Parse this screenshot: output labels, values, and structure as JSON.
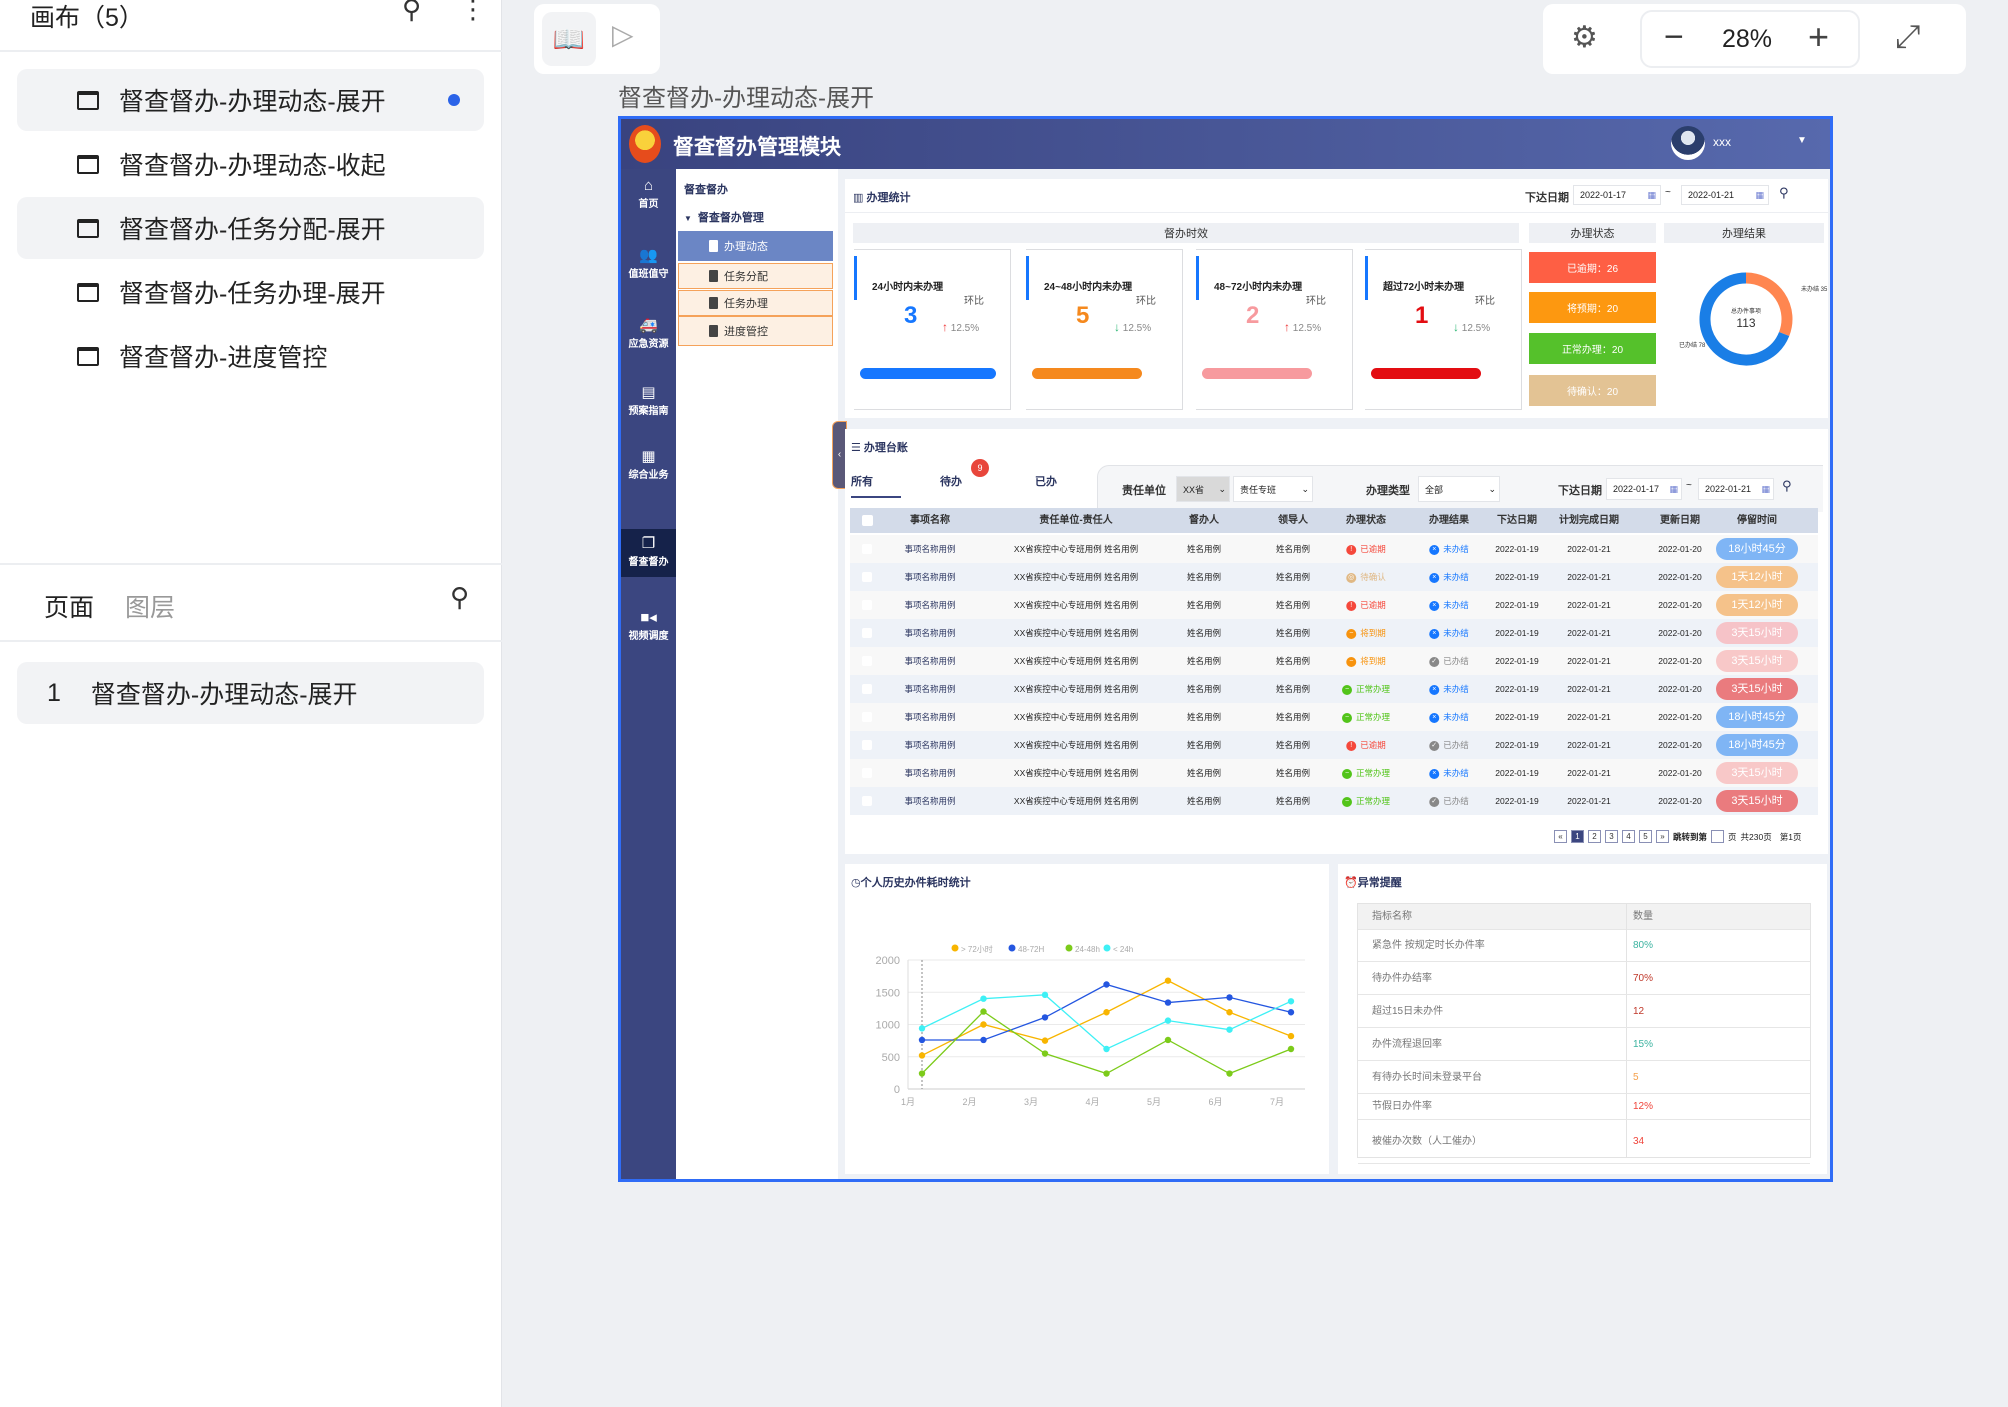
{
  "left_panel": {
    "canvas_title": "画布（5）",
    "canvas_items": [
      {
        "label": "督查督办-办理动态-展开",
        "active": true
      },
      {
        "label": "督查督办-办理动态-收起"
      },
      {
        "label": "督查督办-任务分配-展开"
      },
      {
        "label": "督查督办-任务办理-展开"
      },
      {
        "label": "督查督办-进度管控"
      }
    ],
    "tab_pages": "页面",
    "tab_layers": "图层",
    "page_items": [
      {
        "index": "1",
        "label": "督查督办-办理动态-展开"
      }
    ]
  },
  "toolbar": {
    "zoom": "28%"
  },
  "frame_title": "督查督办-办理动态-展开",
  "app": {
    "title": "督查督办管理模块",
    "user": "xxx",
    "nav": [
      {
        "label": "首页",
        "icon": "home-icon"
      },
      {
        "label": "值班值守",
        "icon": "users-icon"
      },
      {
        "label": "应急资源",
        "icon": "truck-icon"
      },
      {
        "label": "预案指南",
        "icon": "document-icon"
      },
      {
        "label": "综合业务",
        "icon": "grid-icon"
      },
      {
        "label": "督查督办",
        "icon": "copy-icon",
        "active": true
      },
      {
        "label": "视频调度",
        "icon": "video-icon"
      }
    ],
    "submenu": {
      "title": "督查督办",
      "group": "督查督办管理",
      "items": [
        "办理动态",
        "任务分配",
        "任务办理",
        "进度管控"
      ]
    },
    "stats": {
      "title": "办理统计",
      "date_label": "下达日期",
      "date_from": "2022-01-17",
      "date_sep": "~",
      "date_to": "2022-01-21",
      "timeliness_header": "督办时效",
      "status_header": "办理状态",
      "result_header": "办理结果",
      "cards": [
        {
          "title": "24小时内未办理",
          "compare_label": "环比",
          "value": "3",
          "change": "12.5%",
          "trend": "up",
          "color": "#1677ff"
        },
        {
          "title": "24~48小时内未办理",
          "compare_label": "环比",
          "value": "5",
          "change": "12.5%",
          "trend": "down",
          "color": "#f5891e"
        },
        {
          "title": "48~72小时内未办理",
          "compare_label": "环比",
          "value": "2",
          "change": "12.5%",
          "trend": "up",
          "color": "#f79a9e"
        },
        {
          "title": "超过72小时未办理",
          "compare_label": "环比",
          "value": "1",
          "change": "12.5%",
          "trend": "down",
          "color": "#e30d12"
        }
      ],
      "status_buttons": [
        {
          "label": "已逾期：26",
          "color": "#fe5f44"
        },
        {
          "label": "将预期：20",
          "color": "#fd9810"
        },
        {
          "label": "正常办理：20",
          "color": "#55c12b"
        },
        {
          "label": "待确认：20",
          "color": "#e3c394"
        }
      ],
      "donut": {
        "center_label": "总办件事项",
        "total": "113",
        "segments": [
          {
            "label": "未办结",
            "value": 35,
            "color": "#ff8650"
          },
          {
            "label": "已办结",
            "value": 78,
            "color": "#1a7ee6"
          }
        ]
      }
    },
    "ledger": {
      "title": "办理台账",
      "tabs": [
        {
          "label": "所有",
          "active": true
        },
        {
          "label": "待办",
          "badge": "9"
        },
        {
          "label": "已办"
        }
      ],
      "filters": {
        "unit_label": "责任单位",
        "unit_value": "XX省",
        "team_value": "责任专班",
        "type_label": "办理类型",
        "type_value": "全部",
        "date_label": "下达日期",
        "date_from": "2022-01-17",
        "date_sep": "~",
        "date_to": "2022-01-21"
      },
      "columns": [
        "事项名称",
        "责任单位-责任人",
        "督办人",
        "领导人",
        "办理状态",
        "办理结果",
        "下达日期",
        "计划完成日期",
        "更新日期",
        "停留时间"
      ],
      "rows": [
        {
          "name": "事项名称用例",
          "unit": "XX省疾控中心专班用例 姓名用例",
          "supervisor": "姓名用例",
          "leader": "姓名用例",
          "status": "已逾期",
          "result": "未办结",
          "issued": "2022-01-19",
          "planned": "2022-01-21",
          "updated": "2022-01-20",
          "dwell": "18小时45分",
          "dwell_color": "#7fb5f5"
        },
        {
          "name": "事项名称用例",
          "unit": "XX省疾控中心专班用例 姓名用例",
          "supervisor": "姓名用例",
          "leader": "姓名用例",
          "status": "待确认",
          "result": "未办结",
          "issued": "2022-01-19",
          "planned": "2022-01-21",
          "updated": "2022-01-20",
          "dwell": "1天12小时",
          "dwell_color": "#f5c28a"
        },
        {
          "name": "事项名称用例",
          "unit": "XX省疾控中心专班用例 姓名用例",
          "supervisor": "姓名用例",
          "leader": "姓名用例",
          "status": "已逾期",
          "result": "未办结",
          "issued": "2022-01-19",
          "planned": "2022-01-21",
          "updated": "2022-01-20",
          "dwell": "1天12小时",
          "dwell_color": "#f5c28a"
        },
        {
          "name": "事项名称用例",
          "unit": "XX省疾控中心专班用例 姓名用例",
          "supervisor": "姓名用例",
          "leader": "姓名用例",
          "status": "将到期",
          "result": "未办结",
          "issued": "2022-01-19",
          "planned": "2022-01-21",
          "updated": "2022-01-20",
          "dwell": "3天15小时",
          "dwell_color": "#f6c3c8"
        },
        {
          "name": "事项名称用例",
          "unit": "XX省疾控中心专班用例 姓名用例",
          "supervisor": "姓名用例",
          "leader": "姓名用例",
          "status": "将到期",
          "result": "已办结",
          "issued": "2022-01-19",
          "planned": "2022-01-21",
          "updated": "2022-01-20",
          "dwell": "3天15小时",
          "dwell_color": "#f8c8c8"
        },
        {
          "name": "事项名称用例",
          "unit": "XX省疾控中心专班用例 姓名用例",
          "supervisor": "姓名用例",
          "leader": "姓名用例",
          "status": "正常办理",
          "result": "未办结",
          "issued": "2022-01-19",
          "planned": "2022-01-21",
          "updated": "2022-01-20",
          "dwell": "3天15小时",
          "dwell_color": "#ea7b7e"
        },
        {
          "name": "事项名称用例",
          "unit": "XX省疾控中心专班用例 姓名用例",
          "supervisor": "姓名用例",
          "leader": "姓名用例",
          "status": "正常办理",
          "result": "未办结",
          "issued": "2022-01-19",
          "planned": "2022-01-21",
          "updated": "2022-01-20",
          "dwell": "18小时45分",
          "dwell_color": "#7fb5f5"
        },
        {
          "name": "事项名称用例",
          "unit": "XX省疾控中心专班用例 姓名用例",
          "supervisor": "姓名用例",
          "leader": "姓名用例",
          "status": "已逾期",
          "result": "已办结",
          "issued": "2022-01-19",
          "planned": "2022-01-21",
          "updated": "2022-01-20",
          "dwell": "18小时45分",
          "dwell_color": "#7fb5f5"
        },
        {
          "name": "事项名称用例",
          "unit": "XX省疾控中心专班用例 姓名用例",
          "supervisor": "姓名用例",
          "leader": "姓名用例",
          "status": "正常办理",
          "result": "未办结",
          "issued": "2022-01-19",
          "planned": "2022-01-21",
          "updated": "2022-01-20",
          "dwell": "3天15小时",
          "dwell_color": "#f8c8c8"
        },
        {
          "name": "事项名称用例",
          "unit": "XX省疾控中心专班用例 姓名用例",
          "supervisor": "姓名用例",
          "leader": "姓名用例",
          "status": "正常办理",
          "result": "已办结",
          "issued": "2022-01-19",
          "planned": "2022-01-21",
          "updated": "2022-01-20",
          "dwell": "3天15小时",
          "dwell_color": "#ea7b7e"
        }
      ],
      "pagination": {
        "first": "«",
        "pages": [
          "1",
          "2",
          "3",
          "4",
          "5"
        ],
        "current": "1",
        "last": "»",
        "jump_label": "跳转到第",
        "page_unit": "页",
        "total": "共230页",
        "current_label": "第1页"
      }
    },
    "anomaly": {
      "title": "异常提醒",
      "col_name": "指标名称",
      "col_value": "数量",
      "rows": [
        {
          "name": "紧急件 按规定时长办件率",
          "value": "80%",
          "color": "#3bb3a0"
        },
        {
          "name": "待办件办结率",
          "value": "70%",
          "color": "#c0392b"
        },
        {
          "name": "超过15日未办件",
          "value": "12",
          "color": "#c0392b"
        },
        {
          "name": "办件流程退回率",
          "value": "15%",
          "color": "#3bb3a0"
        },
        {
          "name": "有待办长时间未登录平台",
          "value": "5",
          "color": "#f5a04a"
        },
        {
          "name": "节假日办件率",
          "value": "12%",
          "color": "#f0443a"
        },
        {
          "name": "被催办次数（人工催办）",
          "value": "34",
          "color": "#f0443a"
        }
      ]
    },
    "history_title": "个人历史办件耗时统计"
  },
  "chart_data": {
    "type": "line",
    "title": "",
    "categories": [
      "1月",
      "2月",
      "3月",
      "4月",
      "5月",
      "6月",
      "7月"
    ],
    "ylim": [
      0,
      2000
    ],
    "yticks": [
      0,
      500,
      1000,
      1500,
      2000
    ],
    "grid": true,
    "legend": "top",
    "series": [
      {
        "name": "> 72小时",
        "color": "#f8b500",
        "values": [
          520,
          1000,
          750,
          1190,
          1680,
          1190,
          820
        ]
      },
      {
        "name": "48-72H",
        "color": "#2456e0",
        "values": [
          760,
          760,
          1110,
          1620,
          1340,
          1420,
          1190
        ]
      },
      {
        "name": "24-48h",
        "color": "#7ccb1a",
        "values": [
          240,
          1200,
          550,
          240,
          760,
          240,
          620
        ]
      },
      {
        "name": "< 24h",
        "color": "#3ef0f5",
        "values": [
          940,
          1400,
          1460,
          620,
          1060,
          920,
          1360
        ]
      }
    ]
  }
}
